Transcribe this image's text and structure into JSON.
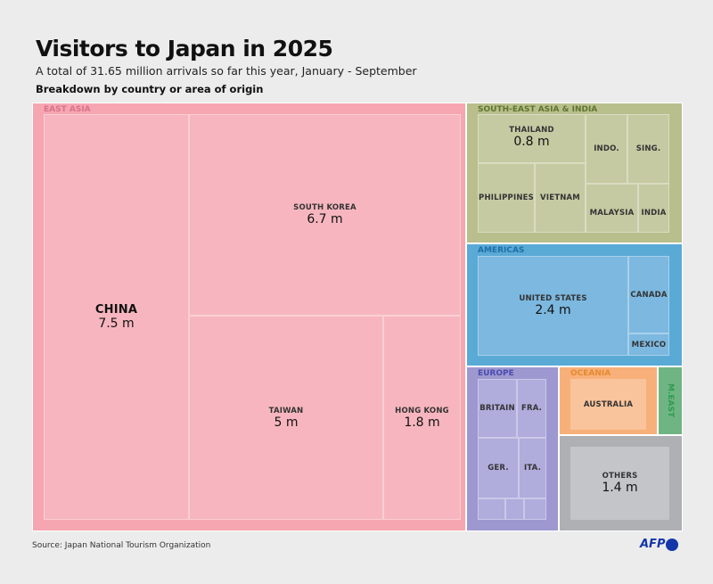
{
  "header": {
    "title": "Visitors to Japan in 2025",
    "subtitle": "A total of 31.65 million arrivals so far this year, January - September",
    "subtitle2": "Breakdown by country or area of origin"
  },
  "footer": {
    "source": "Source: Japan National Tourism Organization",
    "logo": "AFP"
  },
  "chart_data": {
    "type": "treemap",
    "title": "Visitors to Japan in 2025",
    "unit": "m",
    "total": "31.65 million",
    "groups": [
      {
        "name": "EAST ASIA",
        "color": "#f6a6b0",
        "label_color": "#d9738a",
        "inner_color": "#f7b6bf",
        "items": [
          {
            "name": "CHINA",
            "value_label": "7.5 m",
            "value": 7.5
          },
          {
            "name": "SOUTH KOREA",
            "value_label": "6.7 m",
            "value": 6.7
          },
          {
            "name": "TAIWAN",
            "value_label": "5 m",
            "value": 5
          },
          {
            "name": "HONG KONG",
            "value_label": "1.8 m",
            "value": 1.8
          }
        ]
      },
      {
        "name": "SOUTH-EAST ASIA & INDIA",
        "color": "#b9bf8c",
        "label_color": "#5f7530",
        "inner_color": "#c6caa2",
        "items": [
          {
            "name": "THAILAND",
            "value_label": "0.8 m",
            "value": 0.8
          },
          {
            "name": "PHILIPPINES"
          },
          {
            "name": "VIETNAM"
          },
          {
            "name": "INDO."
          },
          {
            "name": "SING."
          },
          {
            "name": "MALAYSIA"
          },
          {
            "name": "INDIA"
          }
        ]
      },
      {
        "name": "AMERICAS",
        "color": "#5aaad6",
        "label_color": "#1f6fa8",
        "inner_color": "#7cb8df",
        "items": [
          {
            "name": "UNITED STATES",
            "value_label": "2.4 m",
            "value": 2.4
          },
          {
            "name": "CANADA"
          },
          {
            "name": "MEXICO"
          }
        ]
      },
      {
        "name": "EUROPE",
        "color": "#9d98d0",
        "label_color": "#4a4cb0",
        "inner_color": "#b0acdc",
        "items": [
          {
            "name": "BRITAIN"
          },
          {
            "name": "FRA."
          },
          {
            "name": "GER."
          },
          {
            "name": "ITA."
          }
        ]
      },
      {
        "name": "OCEANIA",
        "color": "#f7b07a",
        "label_color": "#e8892e",
        "inner_color": "#f9c39b",
        "items": [
          {
            "name": "AUSTRALIA"
          }
        ]
      },
      {
        "name": "M.EAST",
        "color": "#6fb584",
        "label_color": "#2f9a52",
        "inner_color": "#7fc092",
        "items": []
      },
      {
        "name": "OTHERS",
        "color": "#aeb0b4",
        "label_color": "#333333",
        "inner_color": "#c4c5c8",
        "items": [
          {
            "name": "OTHERS",
            "value_label": "1.4 m",
            "value": 1.4
          }
        ]
      }
    ]
  }
}
